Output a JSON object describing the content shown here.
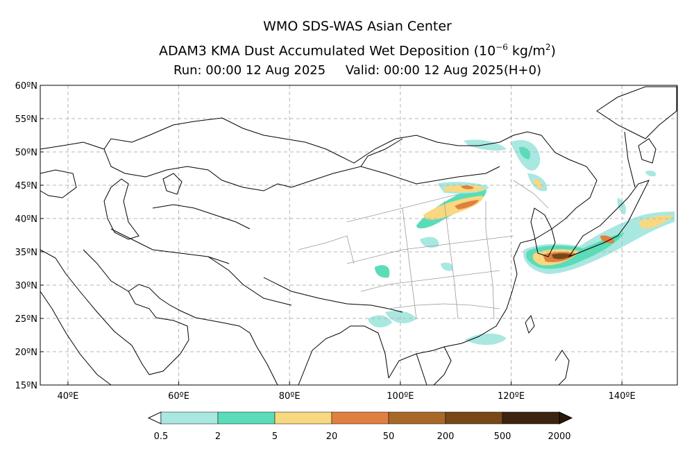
{
  "header": {
    "title": "WMO SDS-WAS Asian Center",
    "product": "ADAM3 KMA Dust Accumulated Wet Deposition (10",
    "unit_exp": "−6",
    "unit_mid": " kg/m",
    "unit_sq": "2",
    "unit_close": ")",
    "run": "Run: 00:00 12 Aug 2025",
    "valid": "Valid: 00:00 12 Aug 2025(H+0)"
  },
  "map": {
    "lat_labels": [
      "60ºN",
      "55ºN",
      "50ºN",
      "45ºN",
      "40ºN",
      "35ºN",
      "30ºN",
      "25ºN",
      "20ºN",
      "15ºN"
    ],
    "lon_labels": [
      "40ºE",
      "60ºE",
      "80ºE",
      "100ºE",
      "120ºE",
      "140ºE"
    ],
    "lat_range": [
      15,
      60
    ],
    "lon_range": [
      35,
      150
    ]
  },
  "legend": {
    "colors": [
      "#a8e8e0",
      "#5adcb8",
      "#f8d880",
      "#e08040",
      "#a86828",
      "#784818",
      "#3c2410"
    ],
    "labels": [
      "0.5",
      "2",
      "5",
      "20",
      "50",
      "200",
      "500",
      "2000"
    ]
  }
}
